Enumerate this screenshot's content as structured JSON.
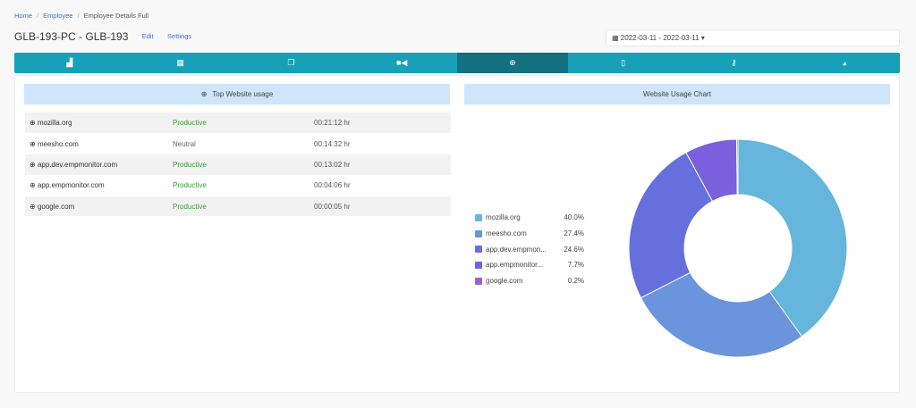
{
  "breadcrumb": [
    "Home",
    "Employee",
    "Employee Details Full"
  ],
  "header": {
    "title": "GLB-193-PC - GLB-193",
    "edit": "Edit",
    "settings": "Settings",
    "date_range": "2022-03-11 - 2022-03-11"
  },
  "tabs": [
    {
      "icon": "chart-icon"
    },
    {
      "icon": "calendar-icon"
    },
    {
      "icon": "screenshots-icon"
    },
    {
      "icon": "video-icon"
    },
    {
      "icon": "globe-icon",
      "active": true
    },
    {
      "icon": "mobile-icon"
    },
    {
      "icon": "key-icon"
    },
    {
      "icon": "pie-chart-icon"
    }
  ],
  "left": {
    "title": "Top Website usage",
    "rows": [
      {
        "site": "mozilla.org",
        "status": "Productive",
        "time": "00:21:12 hr"
      },
      {
        "site": "meesho.com",
        "status": "Neutral",
        "time": "00:14:32 hr"
      },
      {
        "site": "app.dev.empmonitor.com",
        "status": "Productive",
        "time": "00:13:02 hr"
      },
      {
        "site": "app.empmonitor.com",
        "status": "Productive",
        "time": "00:04:06 hr"
      },
      {
        "site": "google.com",
        "status": "Productive",
        "time": "00:00:05 hr"
      }
    ]
  },
  "right": {
    "title": "Website Usage Chart"
  },
  "chart_data": {
    "type": "pie",
    "variant": "donut",
    "legend_position": "left",
    "labels": [
      "mozilla.org",
      "meesho.com",
      "app.dev.empmon...",
      "app.empmonitor...",
      "google.com"
    ],
    "values": [
      40.0,
      27.4,
      24.6,
      7.7,
      0.2
    ],
    "value_labels": [
      "40.0%",
      "27.4%",
      "24.6%",
      "7.7%",
      "0.2%"
    ],
    "colors": [
      "#66b5dc",
      "#6a94dc",
      "#6670dc",
      "#7a60dc",
      "#9b5fdc"
    ]
  }
}
